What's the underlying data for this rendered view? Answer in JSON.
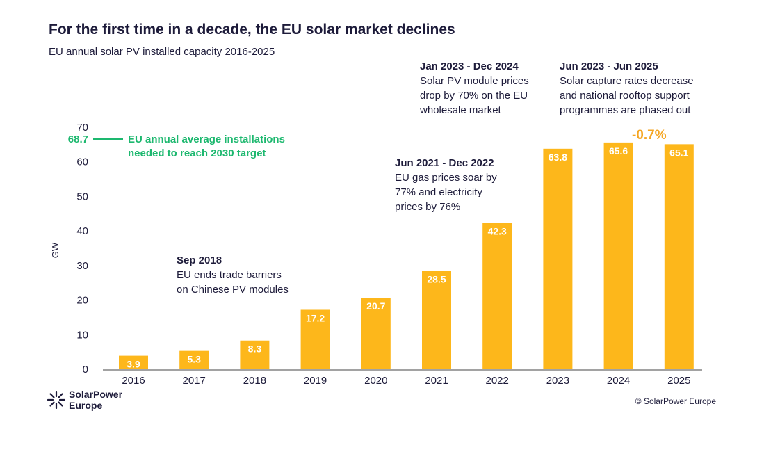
{
  "title": "For the first time in a decade, the EU solar market declines",
  "subtitle": "EU annual solar PV installed capacity 2016-2025",
  "annotations": [
    {
      "heading": "Sep 2018",
      "lines": [
        "EU ends trade barriers",
        "on Chinese PV modules"
      ]
    },
    {
      "heading": "Jun 2021 - Dec 2022",
      "lines": [
        "EU gas prices soar by",
        "77% and electricity",
        "prices by 76%"
      ]
    },
    {
      "heading": "Jan 2023 - Dec 2024",
      "lines": [
        "Solar PV module prices",
        "drop by 70% on the EU",
        "wholesale market"
      ]
    },
    {
      "heading": "Jun 2023 - Jun 2025",
      "lines": [
        "Solar capture rates decrease",
        "and national rooftop support",
        "programmes are phased out"
      ]
    }
  ],
  "change_label": "-0.7%",
  "copyright": "© SolarPower Europe",
  "logo": {
    "line1": "SolarPower",
    "line2": "Europe"
  },
  "colors": {
    "bar": "#FDB71B",
    "target": "#1DB86F",
    "text": "#1d1b3a",
    "change": "#F5A623"
  },
  "chart_data": {
    "type": "bar",
    "categories": [
      "2016",
      "2017",
      "2018",
      "2019",
      "2020",
      "2021",
      "2022",
      "2023",
      "2024",
      "2025"
    ],
    "values": [
      3.9,
      5.3,
      8.3,
      17.2,
      20.7,
      28.5,
      42.3,
      63.8,
      65.6,
      65.1
    ],
    "value_labels": [
      "3.9",
      "5.3",
      "8.3",
      "17.2",
      "20.7",
      "28.5",
      "42.3",
      "63.8",
      "65.6",
      "65.1"
    ],
    "ylabel": "GW",
    "ylim": [
      0,
      70
    ],
    "yticks": [
      "0",
      "10",
      "20",
      "30",
      "40",
      "50",
      "60",
      "70"
    ],
    "grid": false,
    "reference_line": {
      "value": 68.7,
      "label": "68.7",
      "text": [
        "EU annual average installations",
        "needed to reach 2030 target"
      ]
    }
  }
}
